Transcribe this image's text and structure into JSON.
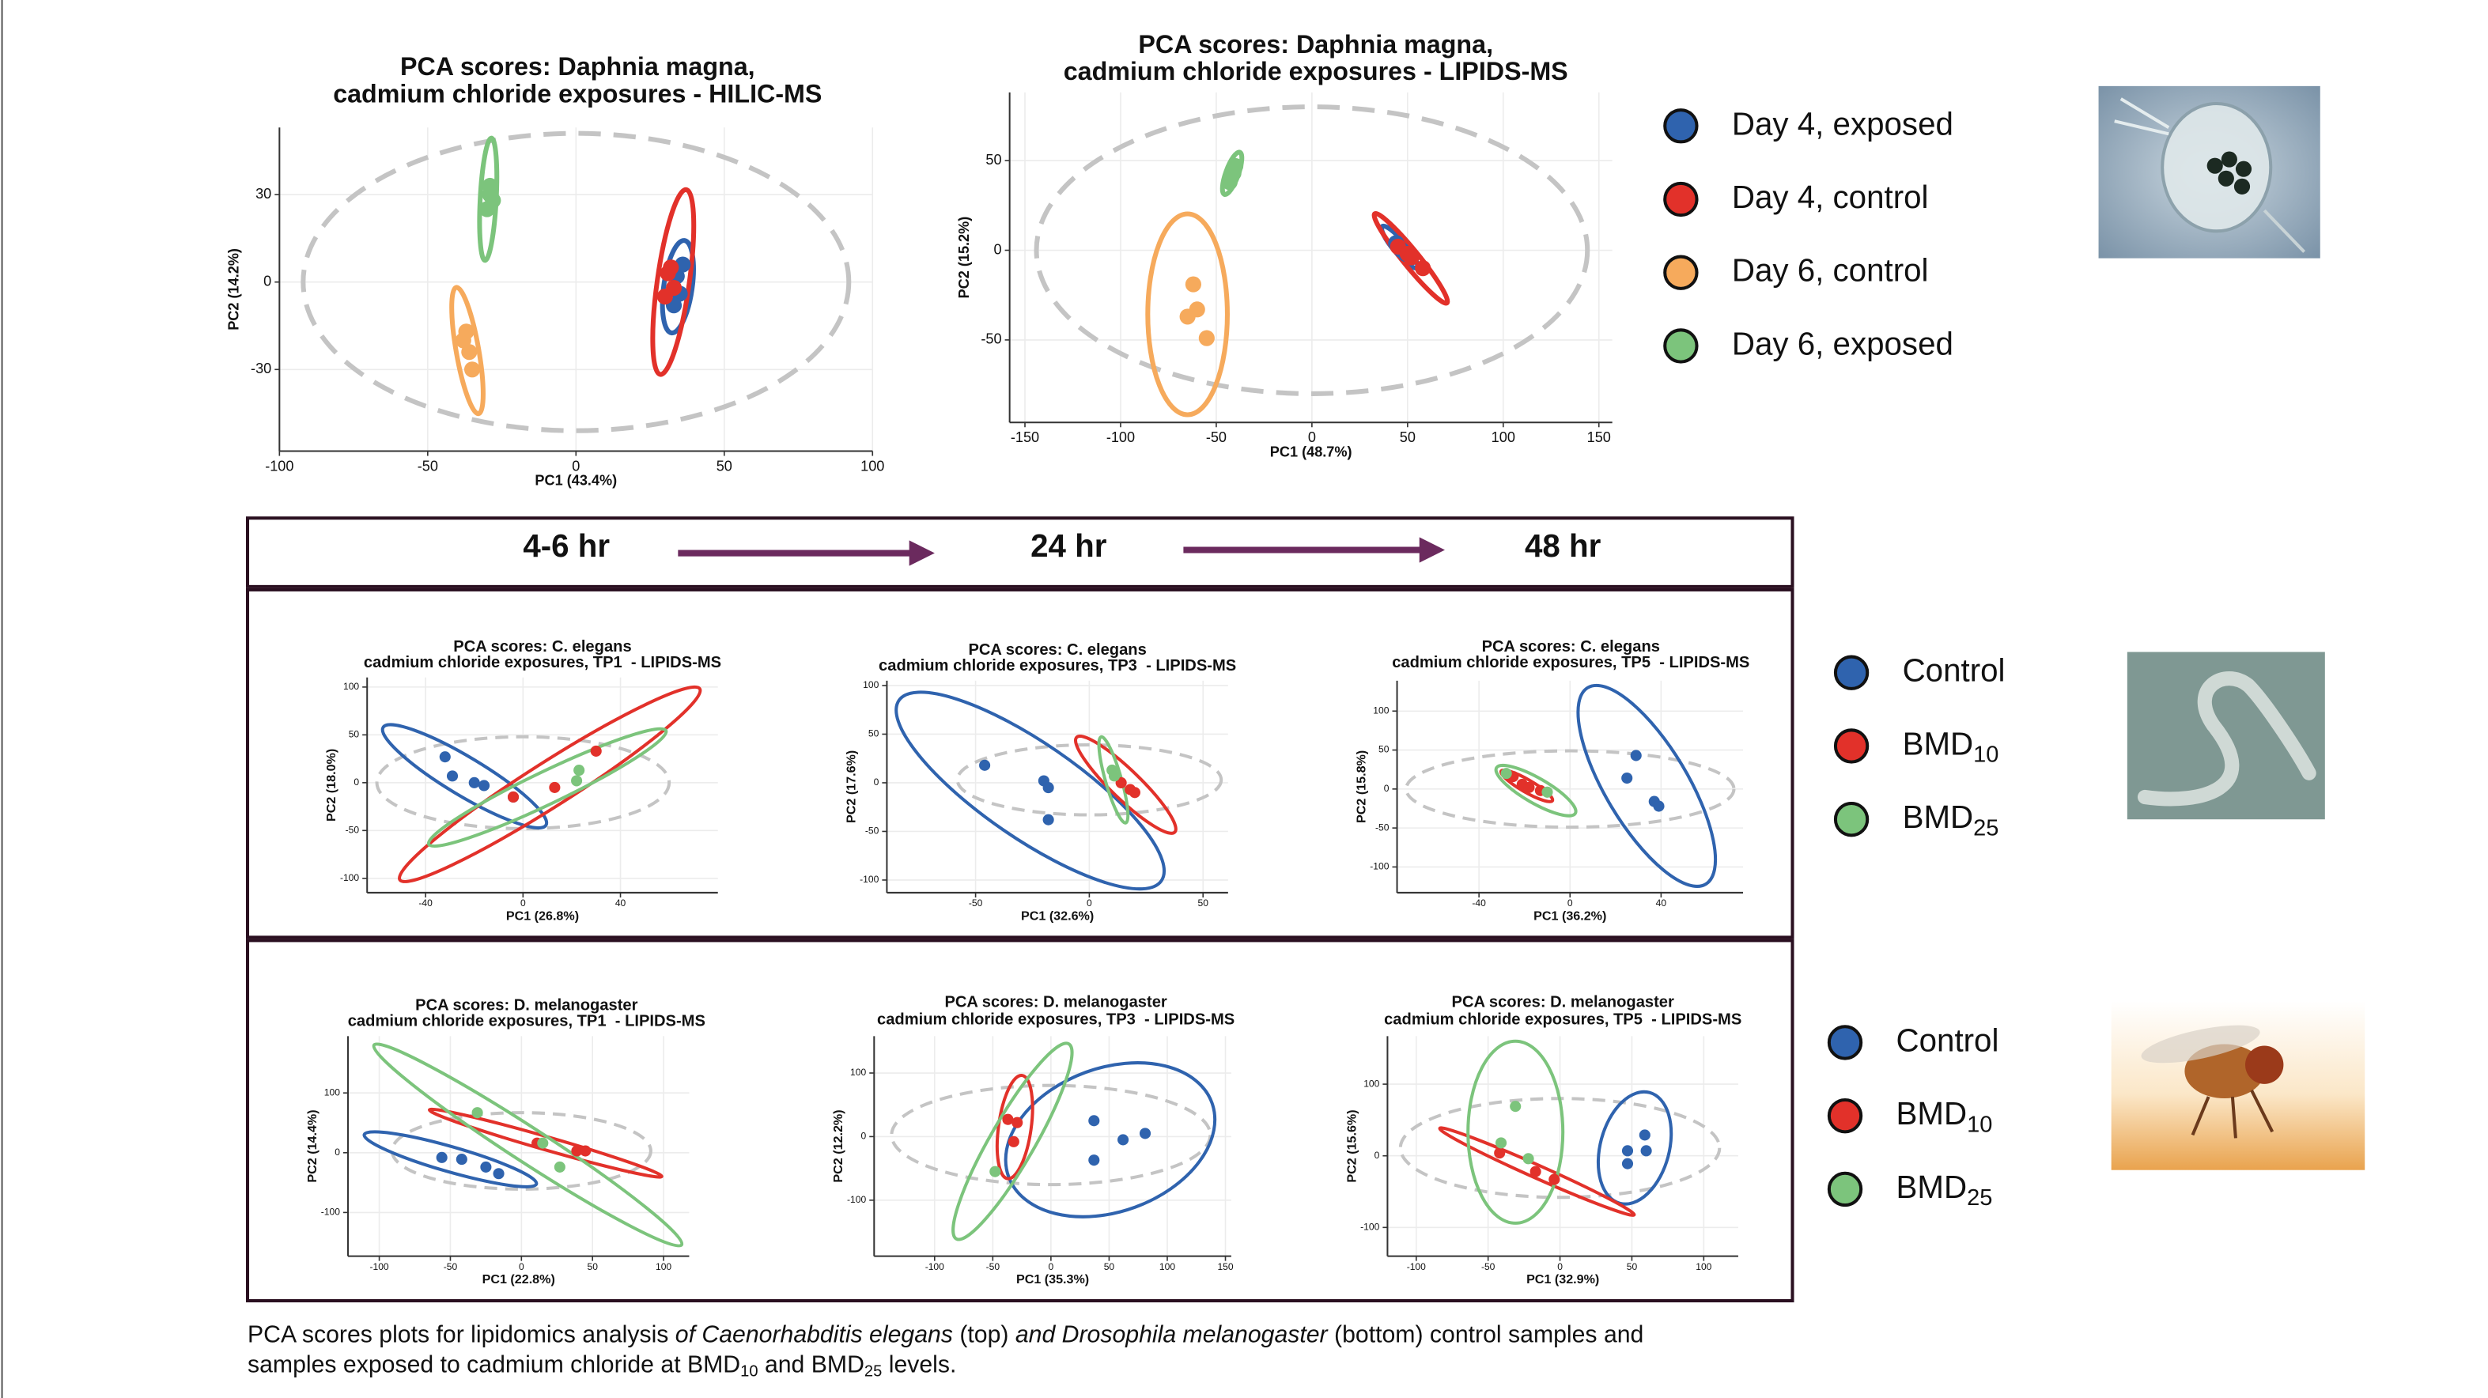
{
  "chart_data": [
    {
      "type": "scatter",
      "title": [
        "PCA scores: Daphnia magna,",
        "cadmium chloride exposures - HILIC-MS"
      ],
      "xlabel": "PC1 (43.4%)",
      "ylabel": "PC2 (14.2%)",
      "xlim": [
        -100,
        100
      ],
      "ylim": [
        -58,
        53
      ],
      "xticks": [
        -100,
        -50,
        0,
        50,
        100
      ],
      "yticks": [
        -30,
        0,
        30
      ],
      "grid": true,
      "reference_ellipse": [
        0,
        0,
        92,
        51,
        0
      ],
      "series": [
        {
          "color": "#2f63ae",
          "x": [
            34,
            35,
            33,
            36
          ],
          "y": [
            2,
            -4,
            -8,
            6
          ],
          "ellipse": [
            34.4,
            -1.6,
            4.8,
            16,
            8
          ]
        },
        {
          "color": "#e2312a",
          "x": [
            31,
            33,
            30,
            32
          ],
          "y": [
            3,
            -2,
            -5,
            5
          ],
          "ellipse": [
            32.8,
            0,
            5.4,
            32,
            8
          ]
        },
        {
          "color": "#f6aa5c",
          "x": [
            -37,
            -38,
            -36,
            -35
          ],
          "y": [
            -17,
            -20,
            -24,
            -30
          ],
          "ellipse": [
            -36.6,
            -23.5,
            3.8,
            22,
            -10
          ]
        },
        {
          "color": "#7cc47c",
          "x": [
            -29,
            -28,
            -30,
            -29
          ],
          "y": [
            33,
            28,
            25,
            30
          ],
          "ellipse": [
            -29.6,
            28.4,
            2.7,
            21,
            3
          ]
        }
      ]
    },
    {
      "type": "scatter",
      "title": [
        "PCA scores: Daphnia magna,",
        "cadmium chloride exposures - LIPIDS-MS"
      ],
      "xlabel": "PC1 (48.7%)",
      "ylabel": "PC2 (15.2%)",
      "xlim": [
        -158,
        157
      ],
      "ylim": [
        -96,
        88
      ],
      "xticks": [
        -150,
        -100,
        -50,
        0,
        50,
        100,
        150
      ],
      "yticks": [
        -50,
        0,
        50
      ],
      "grid": true,
      "reference_ellipse": [
        0,
        0,
        144,
        80,
        0
      ],
      "series": [
        {
          "color": "#2f63ae",
          "x": [
            44,
            47,
            49
          ],
          "y": [
            4,
            0,
            -2
          ],
          "ellipse": [
            45.8,
            1.8,
            3.3,
            15,
            -40
          ]
        },
        {
          "color": "#e2312a",
          "x": [
            45,
            50,
            52,
            58
          ],
          "y": [
            2,
            -2,
            -4,
            -10
          ],
          "ellipse": [
            51.7,
            -4.5,
            4.2,
            32,
            -39
          ]
        },
        {
          "color": "#f6aa5c",
          "x": [
            -62,
            -60,
            -65,
            -55
          ],
          "y": [
            -19,
            -33,
            -37,
            -49
          ],
          "ellipse": [
            -65,
            -35.7,
            20.8,
            56,
            0
          ]
        },
        {
          "color": "#7cc47c",
          "x": [
            -43,
            -41,
            -40
          ],
          "y": [
            38,
            43,
            47
          ],
          "ellipse": [
            -41.7,
            42.9,
            3.3,
            12.5,
            20
          ]
        }
      ]
    },
    {
      "type": "scatter",
      "title": [
        "PCA scores: C. elegans",
        "cadmium chloride exposures, TP1  - LIPIDS-MS"
      ],
      "xlabel": "PC1 (26.8%)",
      "ylabel": "PC2 (18.0%)",
      "xlim": [
        -64,
        80
      ],
      "ylim": [
        -115,
        110
      ],
      "xticks": [
        -40,
        0,
        40
      ],
      "yticks": [
        -100,
        -50,
        0,
        50,
        100
      ],
      "grid": true,
      "reference_ellipse": [
        0,
        0,
        60,
        48,
        0
      ],
      "series": [
        {
          "color": "#2f63ae",
          "x": [
            -32,
            -29,
            -20,
            -16,
            -4
          ],
          "y": [
            27,
            7,
            0,
            -3,
            -15
          ],
          "ellipse": [
            -24,
            6.7,
            39,
            20,
            31
          ]
        },
        {
          "color": "#e2312a",
          "x": [
            -4,
            13,
            30
          ],
          "y": [
            -15,
            -5,
            33
          ],
          "ellipse": [
            11,
            -1.7,
            73,
            23,
            -32.5
          ]
        },
        {
          "color": "#7cc47c",
          "x": [
            23,
            22
          ],
          "y": [
            13,
            2
          ],
          "ellipse": [
            10,
            -5,
            54,
            17,
            -25.6
          ]
        }
      ]
    },
    {
      "type": "scatter",
      "title": [
        "PCA scores: C. elegans",
        "cadmium chloride exposures, TP3  - LIPIDS-MS"
      ],
      "xlabel": "PC1 (32.6%)",
      "ylabel": "PC2 (17.6%)",
      "xlim": [
        -89,
        61
      ],
      "ylim": [
        -113,
        105
      ],
      "xticks": [
        -50,
        0,
        50
      ],
      "yticks": [
        -100,
        -50,
        0,
        50,
        100
      ],
      "grid": true,
      "reference_ellipse": [
        0,
        3,
        58,
        36,
        0
      ],
      "series": [
        {
          "color": "#2f63ae",
          "x": [
            -46,
            -20,
            -18,
            -18
          ],
          "y": [
            18,
            2,
            -5,
            -38
          ],
          "ellipse": [
            -26,
            -8,
            70,
            49,
            34.5
          ]
        },
        {
          "color": "#e2312a",
          "x": [
            18,
            20,
            14
          ],
          "y": [
            -7,
            -10,
            0
          ],
          "ellipse": [
            16,
            -2,
            30,
            15,
            44
          ]
        },
        {
          "color": "#7cc47c",
          "x": [
            10,
            11
          ],
          "y": [
            13,
            7
          ],
          "ellipse": [
            10.6,
            3,
            3.5,
            46,
            -16
          ]
        }
      ]
    },
    {
      "type": "scatter",
      "title": [
        "PCA scores: C. elegans",
        "cadmium chloride exposures, TP5  - LIPIDS-MS"
      ],
      "xlabel": "PC1 (36.2%)",
      "ylabel": "PC2 (15.8%)",
      "xlim": [
        -76,
        76
      ],
      "ylim": [
        -133,
        139
      ],
      "xticks": [
        -40,
        0,
        40
      ],
      "yticks": [
        -100,
        -50,
        0,
        50,
        100
      ],
      "grid": true,
      "reference_ellipse": [
        0,
        0,
        72,
        49,
        0
      ],
      "series": [
        {
          "color": "#2f63ae",
          "x": [
            29,
            25,
            37,
            39
          ],
          "y": [
            43,
            14,
            -16,
            -22
          ],
          "ellipse": [
            33.7,
            4,
            18,
            147,
            -31
          ]
        },
        {
          "color": "#e2312a",
          "x": [
            -25,
            -21,
            -18,
            -13
          ],
          "y": [
            16,
            6,
            2,
            -2
          ],
          "ellipse": [
            -19,
            4,
            13,
            8,
            30
          ]
        },
        {
          "color": "#7cc47c",
          "x": [
            -10,
            -28
          ],
          "y": [
            -4,
            20
          ],
          "ellipse": [
            -15,
            -2,
            20,
            16,
            30
          ]
        }
      ]
    },
    {
      "type": "scatter",
      "title": [
        "PCA scores: D. melanogaster",
        "cadmium chloride exposures, TP1  - LIPIDS-MS"
      ],
      "xlabel": "PC1 (22.8%)",
      "ylabel": "PC2 (14.4%)",
      "xlim": [
        -122,
        118
      ],
      "ylim": [
        -173,
        195
      ],
      "xticks": [
        -100,
        -50,
        0,
        50,
        100
      ],
      "yticks": [
        -100,
        0,
        100
      ],
      "grid": true,
      "reference_ellipse": [
        0,
        3,
        91,
        64,
        0
      ],
      "series": [
        {
          "color": "#2f63ae",
          "x": [
            -56,
            -42,
            -25,
            -16
          ],
          "y": [
            -8,
            -11,
            -24,
            -35
          ],
          "ellipse": [
            -50,
            -11,
            63,
            21,
            16
          ]
        },
        {
          "color": "#e2312a",
          "x": [
            11,
            39,
            45
          ],
          "y": [
            16,
            3,
            3
          ],
          "ellipse": [
            17,
            16,
            85,
            11,
            16
          ]
        },
        {
          "color": "#7cc47c",
          "x": [
            -31,
            15,
            27
          ],
          "y": [
            67,
            16,
            -24
          ],
          "ellipse": [
            4.5,
            13,
            129,
            29,
            33
          ]
        }
      ]
    },
    {
      "type": "scatter",
      "title": [
        "PCA scores: D. melanogaster",
        "cadmium chloride exposures, TP3  - LIPIDS-MS"
      ],
      "xlabel": "PC1 (35.3%)",
      "ylabel": "PC2 (12.2%)",
      "xlim": [
        -152,
        155
      ],
      "ylim": [
        -188,
        158
      ],
      "xticks": [
        -100,
        -50,
        0,
        50,
        100,
        150
      ],
      "yticks": [
        -100,
        0,
        100
      ],
      "grid": true,
      "reference_ellipse": [
        0,
        2.5,
        137,
        78,
        0
      ],
      "series": [
        {
          "color": "#2f63ae",
          "x": [
            37,
            62,
            81,
            37
          ],
          "y": [
            25,
            -5,
            5,
            -37
          ],
          "ellipse": [
            51,
            -5,
            93,
            113,
            -20
          ]
        },
        {
          "color": "#e2312a",
          "x": [
            -37,
            -29,
            -32
          ],
          "y": [
            27,
            22,
            -8
          ],
          "ellipse": [
            -31,
            15,
            14,
            82,
            8
          ]
        },
        {
          "color": "#7cc47c",
          "x": [
            -48
          ],
          "y": [
            -55
          ],
          "ellipse": [
            -33,
            -7.5,
            19,
            177,
            30
          ]
        }
      ]
    },
    {
      "type": "scatter",
      "title": [
        "PCA scores: D. melanogaster",
        "cadmium chloride exposures, TP5  - LIPIDS-MS"
      ],
      "xlabel": "PC1 (32.9%)",
      "ylabel": "PC2 (15.6%)",
      "xlim": [
        -120,
        124
      ],
      "ylim": [
        -140,
        167
      ],
      "xticks": [
        -100,
        -50,
        0,
        50,
        100
      ],
      "yticks": [
        -100,
        0,
        100
      ],
      "grid": true,
      "reference_ellipse": [
        0,
        11,
        111,
        69,
        0
      ],
      "series": [
        {
          "color": "#2f63ae",
          "x": [
            47,
            59,
            60,
            47
          ],
          "y": [
            7,
            29,
            7,
            -11
          ],
          "ellipse": [
            52,
            11,
            24,
            80,
            15
          ]
        },
        {
          "color": "#e2312a",
          "x": [
            -42,
            -17,
            -4
          ],
          "y": [
            4,
            -22,
            -33
          ],
          "ellipse": [
            -16,
            -22,
            74,
            9,
            24
          ]
        },
        {
          "color": "#7cc47c",
          "x": [
            -41,
            -31,
            -22
          ],
          "y": [
            18,
            69,
            -4
          ],
          "ellipse": [
            -31,
            33,
            33,
            127,
            0
          ]
        }
      ]
    }
  ],
  "legends": [
    {
      "items": [
        {
          "name": "Day 4, exposed",
          "color": "#2f63ae"
        },
        {
          "name": "Day 4, control",
          "color": "#e2312a"
        },
        {
          "name": "Day 6, control",
          "color": "#f6aa5c"
        },
        {
          "name": "Day 6, exposed",
          "color": "#7cc47c"
        }
      ]
    },
    {
      "items": [
        {
          "name": "Control",
          "color": "#2f63ae"
        },
        {
          "name": "BMD",
          "sub": "10",
          "color": "#e2312a"
        },
        {
          "name": "BMD",
          "sub": "25",
          "color": "#7cc47c"
        }
      ]
    },
    {
      "items": [
        {
          "name": "Control",
          "color": "#2f63ae"
        },
        {
          "name": "BMD",
          "sub": "10",
          "color": "#e2312a"
        },
        {
          "name": "BMD",
          "sub": "25",
          "color": "#7cc47c"
        }
      ]
    }
  ],
  "timeline": [
    "4-6 hr",
    "24 hr",
    "48 hr"
  ],
  "caption": {
    "line1": [
      {
        "text": "PCA scores plots for lipidomics analysis ",
        "style": "normal"
      },
      {
        "text": "of Caenorhabditis elegans",
        "style": "italic"
      },
      {
        "text": " (top) ",
        "style": "normal"
      },
      {
        "text": "and Drosophila melanogaster",
        "style": "italic"
      },
      {
        "text": " (bottom) control samples and",
        "style": "normal"
      }
    ],
    "line2": [
      {
        "text": "samples exposed to cadmium chloride at BMD",
        "style": "normal"
      },
      {
        "text": "10",
        "style": "sub"
      },
      {
        "text": " and BMD",
        "style": "normal"
      },
      {
        "text": "25",
        "style": "sub"
      },
      {
        "text": " levels.",
        "style": "normal"
      }
    ]
  }
}
